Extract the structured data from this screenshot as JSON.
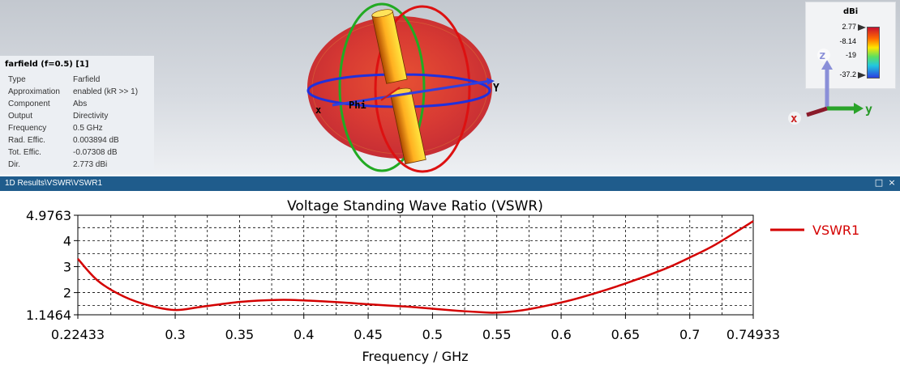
{
  "farfield_info": {
    "title": "farfield (f=0.5) [1]",
    "rows": [
      {
        "key": "Type",
        "value": "Farfield"
      },
      {
        "key": "Approximation",
        "value": "enabled (kR >> 1)"
      },
      {
        "key": "Component",
        "value": "Abs"
      },
      {
        "key": "Output",
        "value": "Directivity"
      },
      {
        "key": "Frequency",
        "value": "0.5 GHz"
      },
      {
        "key": "Rad. Effic.",
        "value": "0.003894 dB"
      },
      {
        "key": "Tot. Effic.",
        "value": "-0.07308 dB"
      },
      {
        "key": "Dir.",
        "value": "2.773 dBi"
      }
    ]
  },
  "color_legend": {
    "unit": "dBi",
    "ticks": [
      "2.77",
      "-8.14",
      "-19",
      "-37.2"
    ]
  },
  "scene_labels": {
    "x": "x",
    "y": "Y",
    "phi": "Phi"
  },
  "axis_triad": {
    "x": "x",
    "y": "y",
    "z": "z"
  },
  "result_window": {
    "title": "1D Results\\VSWR\\VSWR1",
    "restore_icon": "restore-icon",
    "close_icon": "close-icon",
    "restore_glyph": "□",
    "close_glyph": "×"
  },
  "colors": {
    "curve": "#d40000",
    "title_bar": "#1f5c8c"
  },
  "chart_data": {
    "type": "line",
    "title": "Voltage Standing Wave Ratio (VSWR)",
    "xlabel": "Frequency / GHz",
    "ylabel": "",
    "xlim": [
      0.22433,
      0.74933
    ],
    "ylim": [
      1.1464,
      4.9763
    ],
    "x_ticks": [
      "0.22433",
      "0.3",
      "0.35",
      "0.4",
      "0.45",
      "0.5",
      "0.55",
      "0.6",
      "0.65",
      "0.7",
      "0.74933"
    ],
    "y_ticks": [
      "1.1464",
      "2",
      "3",
      "4",
      "4.9763"
    ],
    "grid": true,
    "legend_position": "right",
    "series": [
      {
        "name": "VSWR1",
        "x": [
          0.22433,
          0.24,
          0.26,
          0.28,
          0.3,
          0.32,
          0.35,
          0.38,
          0.4,
          0.43,
          0.45,
          0.48,
          0.5,
          0.52,
          0.54,
          0.55,
          0.57,
          0.6,
          0.62,
          0.65,
          0.68,
          0.7,
          0.72,
          0.74933
        ],
        "y": [
          3.3,
          2.45,
          1.85,
          1.5,
          1.33,
          1.45,
          1.64,
          1.72,
          1.7,
          1.62,
          1.55,
          1.46,
          1.38,
          1.3,
          1.24,
          1.23,
          1.32,
          1.62,
          1.88,
          2.35,
          2.9,
          3.35,
          3.85,
          4.75
        ]
      }
    ]
  }
}
